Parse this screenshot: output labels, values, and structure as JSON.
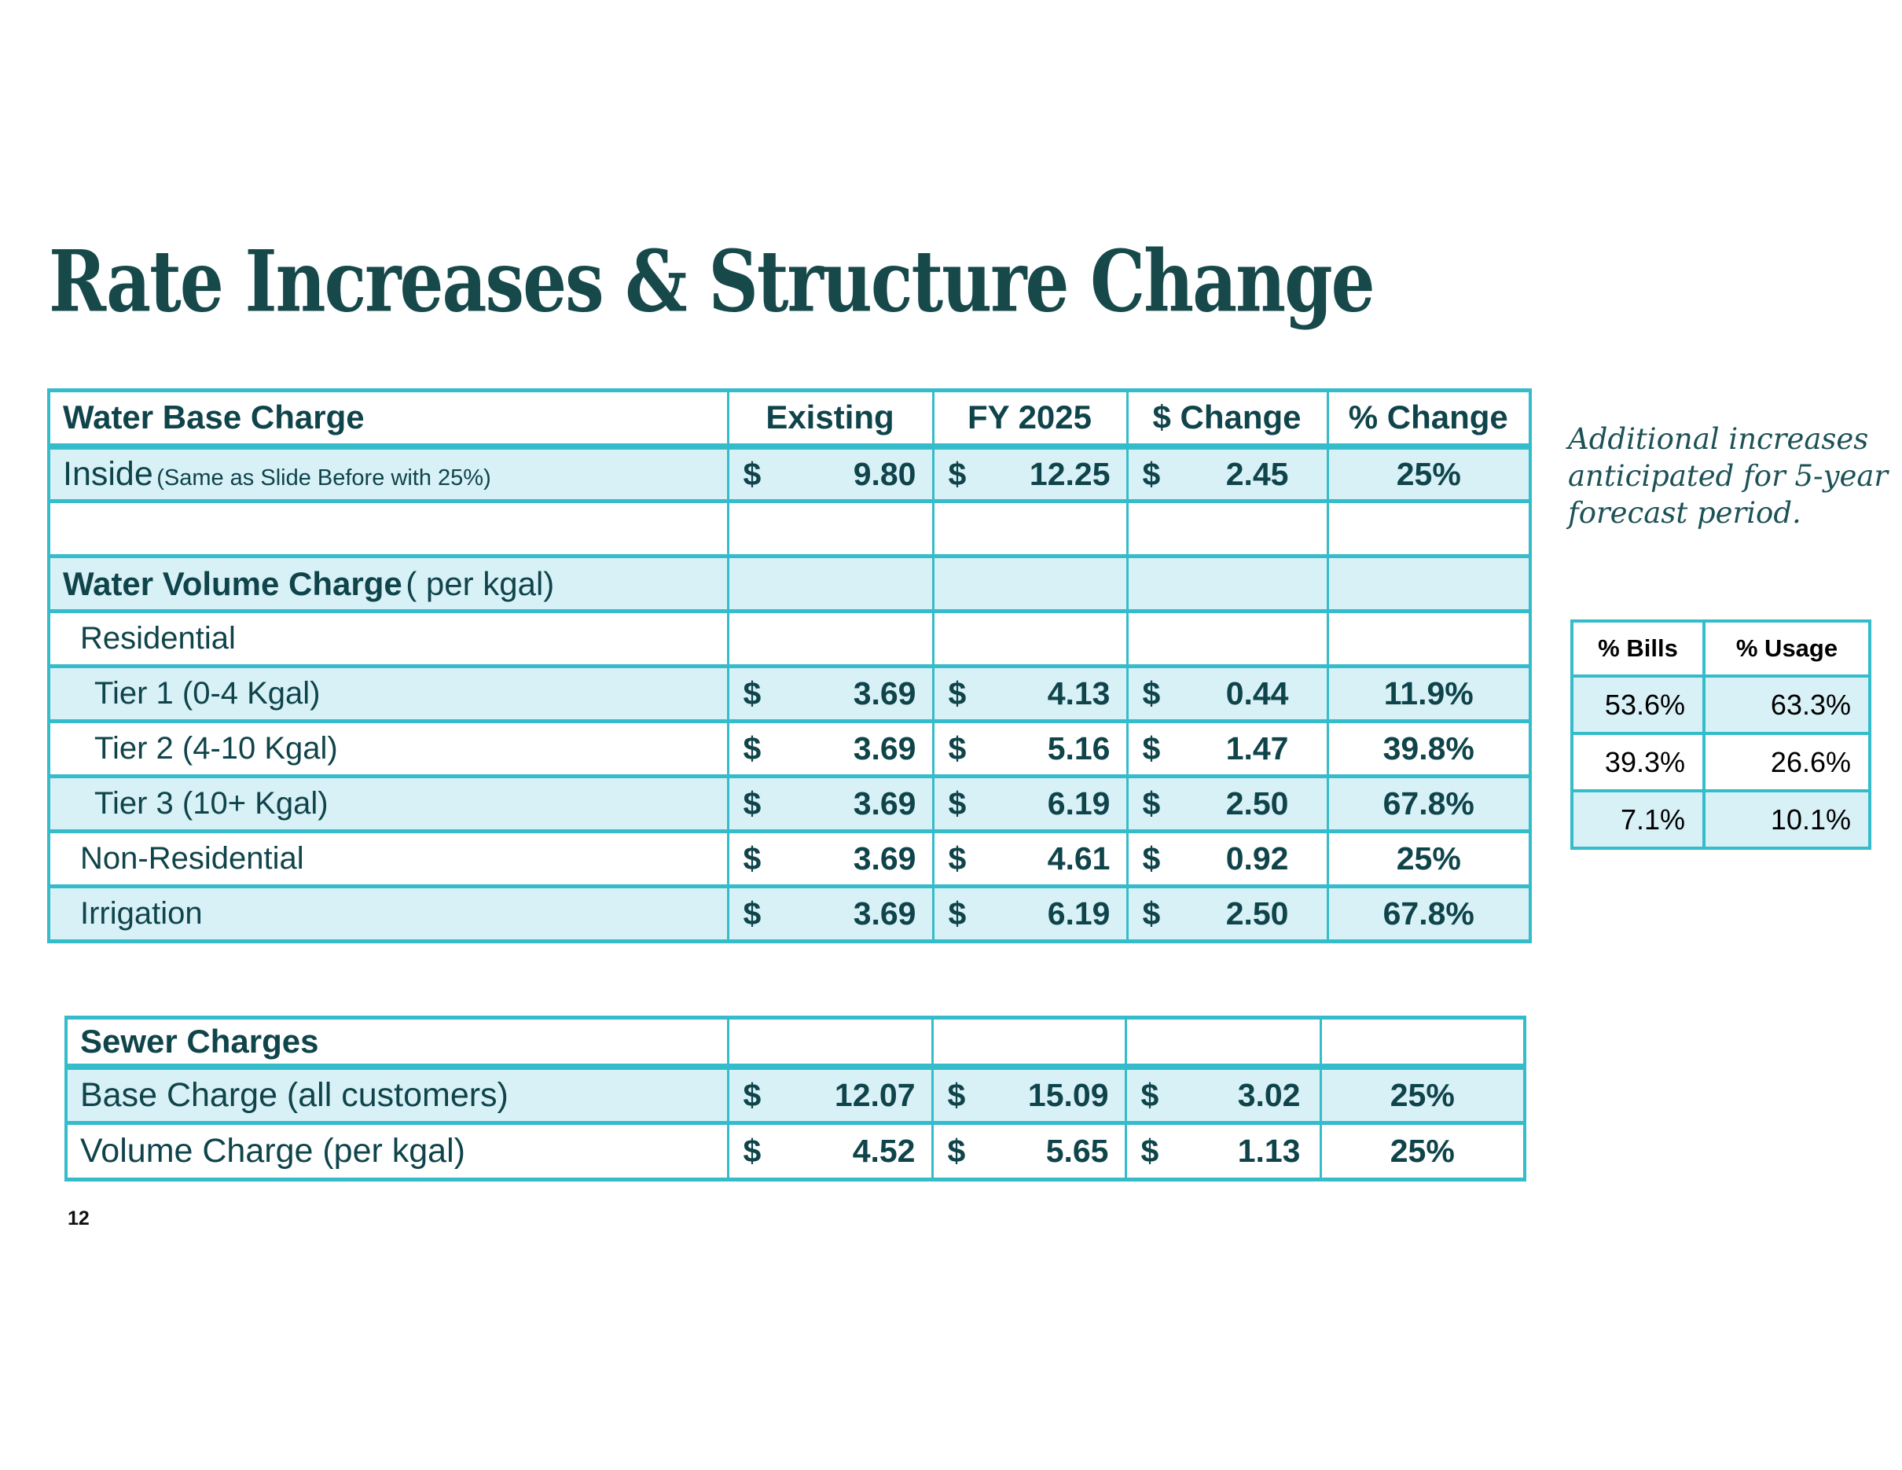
{
  "title": "Rate Increases & Structure Change",
  "page": {
    "number": "12"
  },
  "currency_symbol": "$",
  "colors": {
    "accent_teal": "#35bccb",
    "row_tint": "#d8f1f7",
    "table_text_teal": "#0f444b",
    "side_table_text": "#000000"
  },
  "note": {
    "lines": [
      "Additional increases",
      "anticipated for 5-year",
      "forecast period."
    ]
  },
  "main_table": {
    "columns": [
      "Water Base Charge",
      "Existing",
      "FY 2025",
      "$ Change",
      "% Change"
    ],
    "rows": [
      {
        "label": "Inside",
        "suffix": "(Same as Slide Before with 25%)",
        "suffix_small": true,
        "existing": "9.80",
        "fy2025": "12.25",
        "change": "2.45",
        "pct": "25%",
        "tint": true,
        "indent": 0
      },
      {
        "label": "",
        "tint": false,
        "indent": 0
      },
      {
        "label": "Water Volume Charge",
        "suffix": "( per kgal)",
        "bold": true,
        "tint": true,
        "indent": 0
      },
      {
        "label": "Residential",
        "tint": false,
        "indent": 1
      },
      {
        "label": "Tier 1 (0-4 Kgal)",
        "existing": "3.69",
        "fy2025": "4.13",
        "change": "0.44",
        "pct": "11.9%",
        "tint": true,
        "indent": 2
      },
      {
        "label": "Tier 2 (4-10 Kgal)",
        "existing": "3.69",
        "fy2025": "5.16",
        "change": "1.47",
        "pct": "39.8%",
        "tint": false,
        "indent": 2
      },
      {
        "label": "Tier 3 (10+ Kgal)",
        "existing": "3.69",
        "fy2025": "6.19",
        "change": "2.50",
        "pct": "67.8%",
        "tint": true,
        "indent": 2
      },
      {
        "label": "Non-Residential",
        "existing": "3.69",
        "fy2025": "4.61",
        "change": "0.92",
        "pct": "25%",
        "tint": false,
        "indent": 1
      },
      {
        "label": "Irrigation",
        "existing": "3.69",
        "fy2025": "6.19",
        "change": "2.50",
        "pct": "67.8%",
        "tint": true,
        "indent": 1
      }
    ]
  },
  "sewer_table": {
    "header": "Sewer Charges",
    "rows": [
      {
        "label": "Base Charge (all customers)",
        "existing": "12.07",
        "fy2025": "15.09",
        "change": "3.02",
        "pct": "25%",
        "tint": true,
        "indent": 0
      },
      {
        "label": "Volume Charge (per kgal)",
        "existing": "4.52",
        "fy2025": "5.65",
        "change": "1.13",
        "pct": "25%",
        "tint": false,
        "indent": 0
      }
    ]
  },
  "bills_usage_table": {
    "columns": [
      "% Bills",
      "% Usage"
    ],
    "rows": [
      {
        "bills": "53.6%",
        "usage": "63.3%",
        "tint": true
      },
      {
        "bills": "39.3%",
        "usage": "26.6%",
        "tint": false
      },
      {
        "bills": "7.1%",
        "usage": "10.1%",
        "tint": true
      }
    ]
  }
}
